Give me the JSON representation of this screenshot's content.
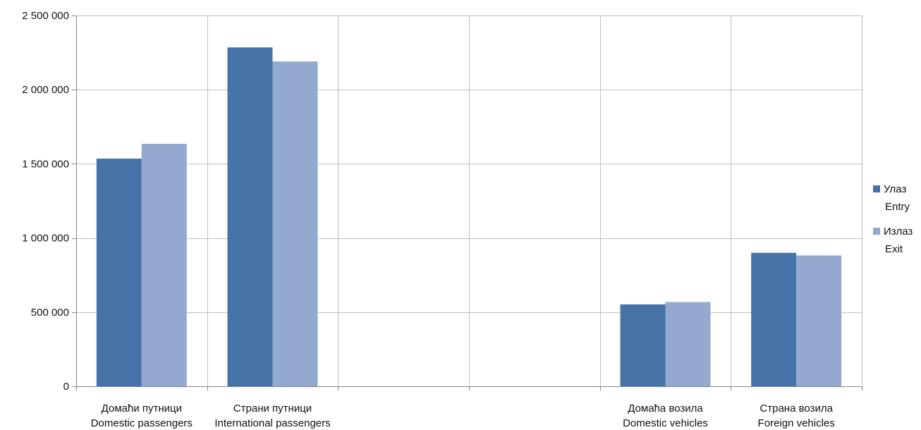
{
  "chart_data": {
    "type": "bar",
    "categories": [
      [
        "Домаћи путници",
        "Domestic passengers"
      ],
      [
        "Страни путници",
        "International passengers"
      ],
      [
        "",
        ""
      ],
      [
        "",
        ""
      ],
      [
        "Домаћа возила",
        "Domestic vehicles"
      ],
      [
        "Страна возила",
        "Foreign vehicles"
      ]
    ],
    "series": [
      {
        "name": [
          "Улаз",
          "Entry"
        ],
        "color": "#4572A7",
        "values": [
          1535000,
          2285000,
          null,
          null,
          552000,
          900000
        ]
      },
      {
        "name": [
          "Излаз",
          "Exit"
        ],
        "color": "#93A9CF",
        "values": [
          1635000,
          2190000,
          null,
          null,
          568000,
          882000
        ]
      }
    ],
    "ylim": [
      0,
      2500000
    ],
    "yticks": [
      0,
      500000,
      1000000,
      1500000,
      2000000,
      2500000
    ],
    "ytick_labels": [
      "0",
      "500 000",
      "1 000 000",
      "1 500 000",
      "2 000 000",
      "2 500 000"
    ],
    "grid": true,
    "legend_position": "right"
  }
}
